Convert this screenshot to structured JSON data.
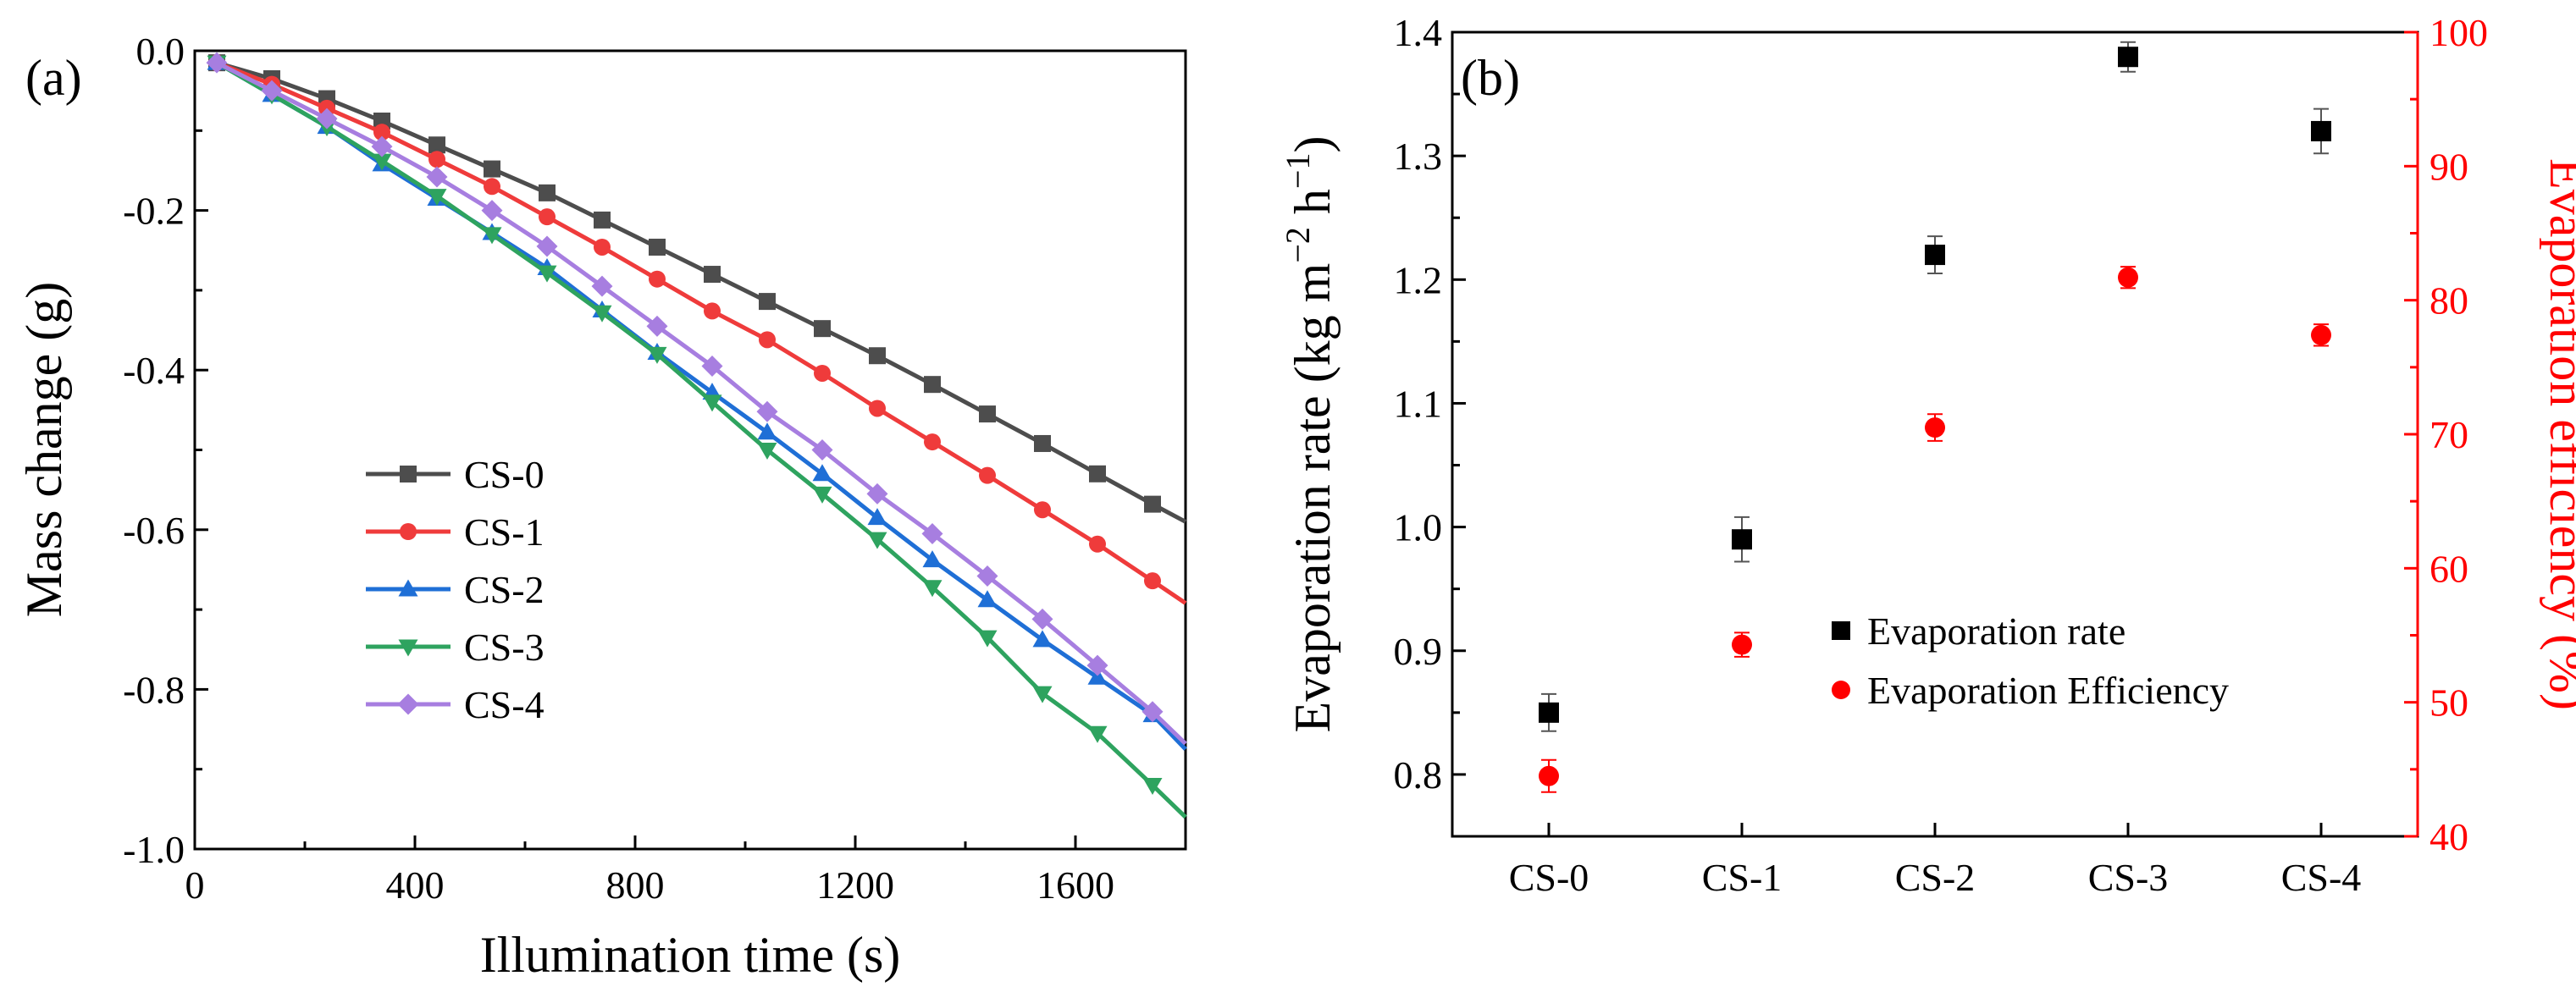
{
  "chart_data": [
    {
      "panel_label": "(a)",
      "type": "line",
      "xlabel": "Illumination  time (s)",
      "ylabel": "Mass change (g)",
      "xlim": [
        0,
        1800
      ],
      "ylim": [
        -1.0,
        0.0
      ],
      "x_ticks": [
        "0",
        "400",
        "800",
        "1200",
        "1600"
      ],
      "y_ticks": [
        "0.0",
        "-0.2",
        "-0.4",
        "-0.6",
        "-0.8",
        "-1.0"
      ],
      "legend_position": "lower-left",
      "x": [
        40,
        140,
        240,
        340,
        440,
        540,
        640,
        740,
        840,
        940,
        1040,
        1140,
        1240,
        1340,
        1440,
        1540,
        1640,
        1740,
        1800
      ],
      "series": [
        {
          "name": "CS-0",
          "color": "#4d4d4d",
          "marker": "square",
          "values": [
            -0.015,
            -0.035,
            -0.06,
            -0.088,
            -0.118,
            -0.148,
            -0.178,
            -0.212,
            -0.246,
            -0.28,
            -0.314,
            -0.348,
            -0.382,
            -0.418,
            -0.455,
            -0.492,
            -0.53,
            -0.568,
            -0.59
          ]
        },
        {
          "name": "CS-1",
          "color": "#ef3b3b",
          "marker": "circle",
          "values": [
            -0.015,
            -0.042,
            -0.072,
            -0.102,
            -0.136,
            -0.17,
            -0.208,
            -0.246,
            -0.286,
            -0.326,
            -0.362,
            -0.404,
            -0.448,
            -0.49,
            -0.532,
            -0.575,
            -0.618,
            -0.664,
            -0.692
          ]
        },
        {
          "name": "CS-2",
          "color": "#1f6fd6",
          "marker": "triangle-up",
          "values": [
            -0.015,
            -0.055,
            -0.095,
            -0.142,
            -0.185,
            -0.228,
            -0.272,
            -0.325,
            -0.378,
            -0.428,
            -0.478,
            -0.53,
            -0.585,
            -0.638,
            -0.688,
            -0.738,
            -0.785,
            -0.832,
            -0.875
          ]
        },
        {
          "name": "CS-3",
          "color": "#2ea35f",
          "marker": "triangle-down",
          "values": [
            -0.015,
            -0.055,
            -0.095,
            -0.138,
            -0.182,
            -0.23,
            -0.278,
            -0.328,
            -0.38,
            -0.44,
            -0.5,
            -0.555,
            -0.612,
            -0.672,
            -0.735,
            -0.805,
            -0.855,
            -0.92,
            -0.96
          ]
        },
        {
          "name": "CS-4",
          "color": "#a77ee0",
          "marker": "diamond",
          "values": [
            -0.015,
            -0.05,
            -0.085,
            -0.12,
            -0.158,
            -0.2,
            -0.245,
            -0.295,
            -0.345,
            -0.395,
            -0.452,
            -0.5,
            -0.555,
            -0.605,
            -0.658,
            -0.712,
            -0.77,
            -0.828,
            -0.868
          ]
        }
      ]
    },
    {
      "panel_label": "(b)",
      "type": "scatter",
      "categories": [
        "CS-0",
        "CS-1",
        "CS-2",
        "CS-3",
        "CS-4"
      ],
      "ylabel": "Evaporation rate (kg m−2 h−1)",
      "ylabel_parts": {
        "a": "Evaporation rate (kg m",
        "b": "−2",
        "c": " h",
        "d": "−1",
        "e": ")"
      },
      "y2label": "Evaporation efficiency (%)",
      "ylim": [
        0.75,
        1.4
      ],
      "y2lim": [
        40,
        100
      ],
      "y_ticks": [
        "0.8",
        "0.9",
        "1.0",
        "1.1",
        "1.2",
        "1.3",
        "1.4"
      ],
      "y2_ticks": [
        "40",
        "50",
        "60",
        "70",
        "80",
        "90",
        "100"
      ],
      "legend_position": "lower-right",
      "y2_color": "#ff0000",
      "series": [
        {
          "name": "Evaporation rate",
          "color": "#000000",
          "marker": "square",
          "axis": "left",
          "values": [
            0.85,
            0.99,
            1.22,
            1.38,
            1.32
          ],
          "errors": [
            0.015,
            0.018,
            0.015,
            0.012,
            0.018
          ]
        },
        {
          "name": "Evaporation Efficiency",
          "color": "#ff0000",
          "marker": "circle",
          "axis": "right",
          "values": [
            44.5,
            54.3,
            70.5,
            81.7,
            77.4
          ],
          "errors": [
            1.2,
            0.9,
            1.0,
            0.8,
            0.8
          ]
        }
      ]
    }
  ]
}
